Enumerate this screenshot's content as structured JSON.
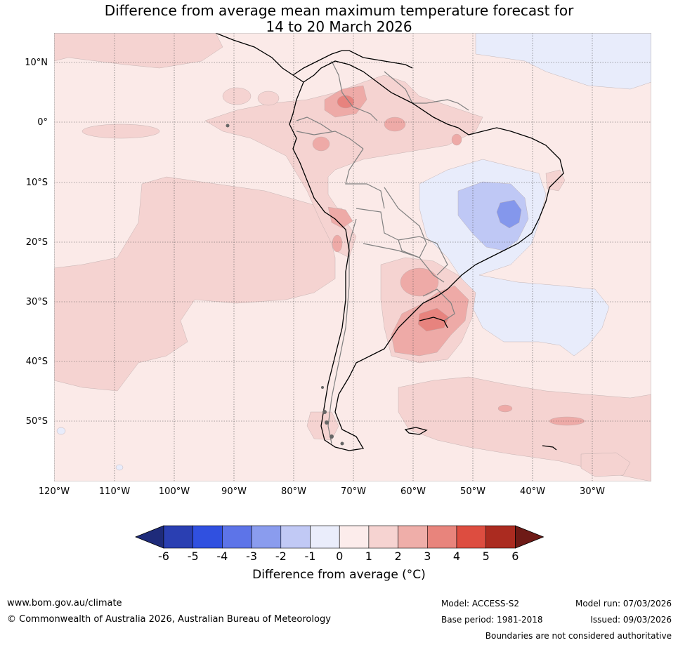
{
  "title": {
    "line1": "Difference from average mean maximum temperature forecast for",
    "line2": "14 to 20 March 2026"
  },
  "map": {
    "latitude_labels": [
      "10°N",
      "0°",
      "10°S",
      "20°S",
      "30°S",
      "40°S",
      "50°S"
    ],
    "longitude_labels": [
      "120°W",
      "110°W",
      "100°W",
      "90°W",
      "80°W",
      "70°W",
      "60°W",
      "50°W",
      "40°W",
      "30°W"
    ],
    "colors": {
      "background_anomaly_0_1": "#fbeae8",
      "anomaly_1_2": "#f5d3d1",
      "anomaly_2_3": "#eeaaa7",
      "anomaly_3_4": "#e7837e",
      "anomaly_m1_0": "#e8ecfb",
      "anomaly_m2_m1": "#bfc8f5",
      "anomaly_m3_m2": "#8497ec",
      "coastline": "#000000",
      "borders": "#808080"
    }
  },
  "colorbar": {
    "colors": [
      "#1e2b7a",
      "#2a3fb2",
      "#3050e0",
      "#5d74e8",
      "#8a9cee",
      "#c1c9f5",
      "#eaedfb",
      "#fceceb",
      "#f6d3d1",
      "#efaea9",
      "#e8847c",
      "#dd4d40",
      "#ab2b20",
      "#6e1a16"
    ],
    "ticks": [
      "-6",
      "-5",
      "-4",
      "-3",
      "-2",
      "-1",
      "0",
      "1",
      "2",
      "3",
      "4",
      "5",
      "6"
    ],
    "label": "Difference from average (°C)"
  },
  "footer": {
    "website": "www.bom.gov.au/climate",
    "copyright": "© Commonwealth of Australia 2026, Australian Bureau of Meteorology",
    "model": "Model: ACCESS-S2",
    "base_period": "Base period: 1981-2018",
    "model_run": "Model run: 07/03/2026",
    "issued": "Issued: 09/03/2026",
    "disclaimer": "Boundaries are not considered authoritative"
  }
}
